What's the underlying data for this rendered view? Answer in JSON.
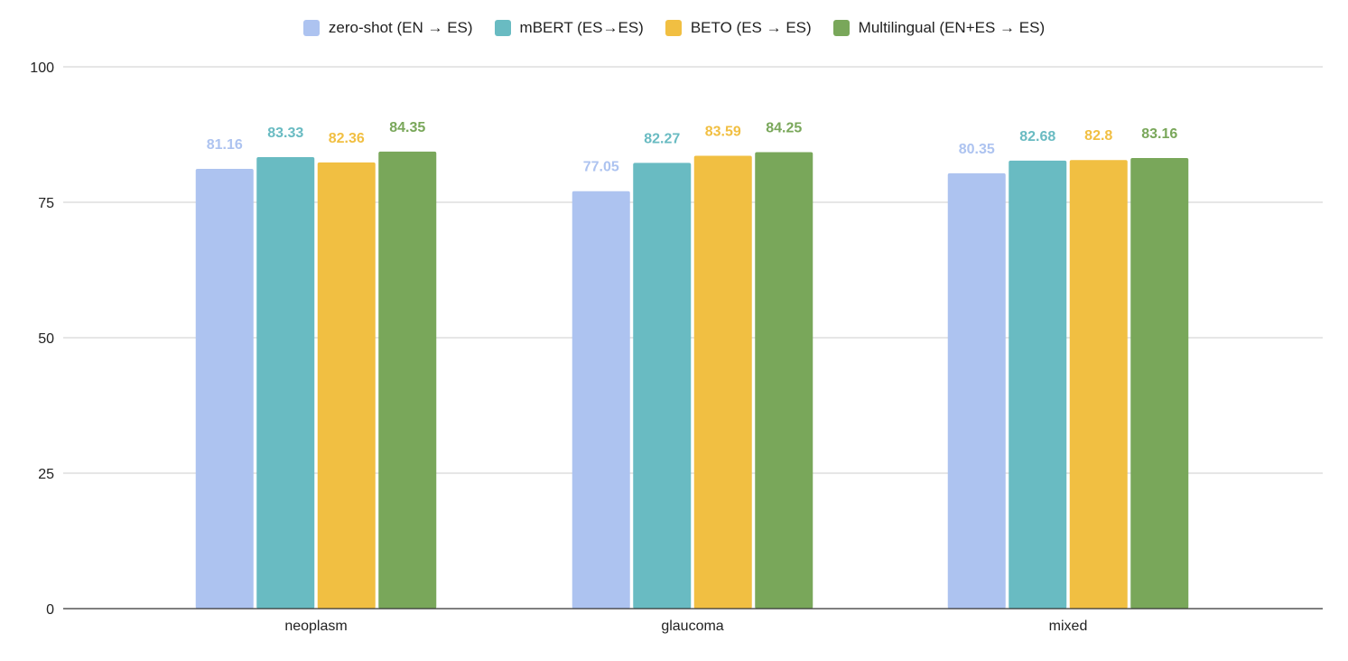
{
  "chart_data": {
    "type": "bar",
    "categories": [
      "neoplasm",
      "glaucoma",
      "mixed"
    ],
    "series": [
      {
        "name": "zero-shot (EN → ES)",
        "color": "#adc3f0",
        "values": [
          81.16,
          77.05,
          80.35
        ],
        "labels": [
          "81.16",
          "77.05",
          "80.35"
        ]
      },
      {
        "name": "mBERT (ES→ES)",
        "color": "#69bbc2",
        "values": [
          83.33,
          82.27,
          82.68
        ],
        "labels": [
          "83.33",
          "82.27",
          "82.68"
        ]
      },
      {
        "name": "BETO (ES → ES)",
        "color": "#f1bf42",
        "values": [
          82.36,
          83.59,
          82.8
        ],
        "labels": [
          "82.36",
          "83.59",
          "82.8"
        ]
      },
      {
        "name": "Multilingual (EN+ES → ES)",
        "color": "#79a75a",
        "values": [
          84.35,
          84.25,
          83.16
        ],
        "labels": [
          "84.35",
          "84.25",
          "83.16"
        ]
      }
    ],
    "ylim": [
      0,
      100
    ],
    "yticks": [
      "0",
      "25",
      "50",
      "75",
      "100"
    ],
    "grid": true,
    "legend_position": "top-center",
    "title": "",
    "xlabel": "",
    "ylabel": ""
  }
}
